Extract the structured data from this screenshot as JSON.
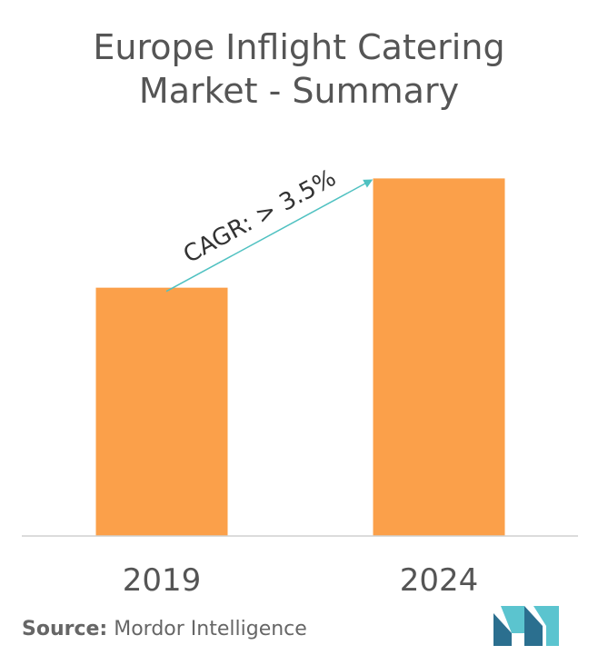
{
  "chart_data": {
    "type": "bar",
    "title_lines": [
      "Europe Inflight Catering",
      "Market - Summary"
    ],
    "categories": [
      "2019",
      "2024"
    ],
    "values": [
      1.0,
      1.44
    ],
    "ylim": [
      0,
      1.5
    ],
    "grid": false,
    "bar_color": "#FBA04A",
    "annotation": {
      "text": "CAGR: > 3.5%",
      "arrow_color": "#4FC1C1"
    }
  },
  "source": {
    "label": "Source:",
    "value": "Mordor Intelligence"
  },
  "logo": {
    "icon": "mordor-intelligence-logo-icon",
    "colors": [
      "#2B6F8F",
      "#5BC4CF"
    ]
  }
}
